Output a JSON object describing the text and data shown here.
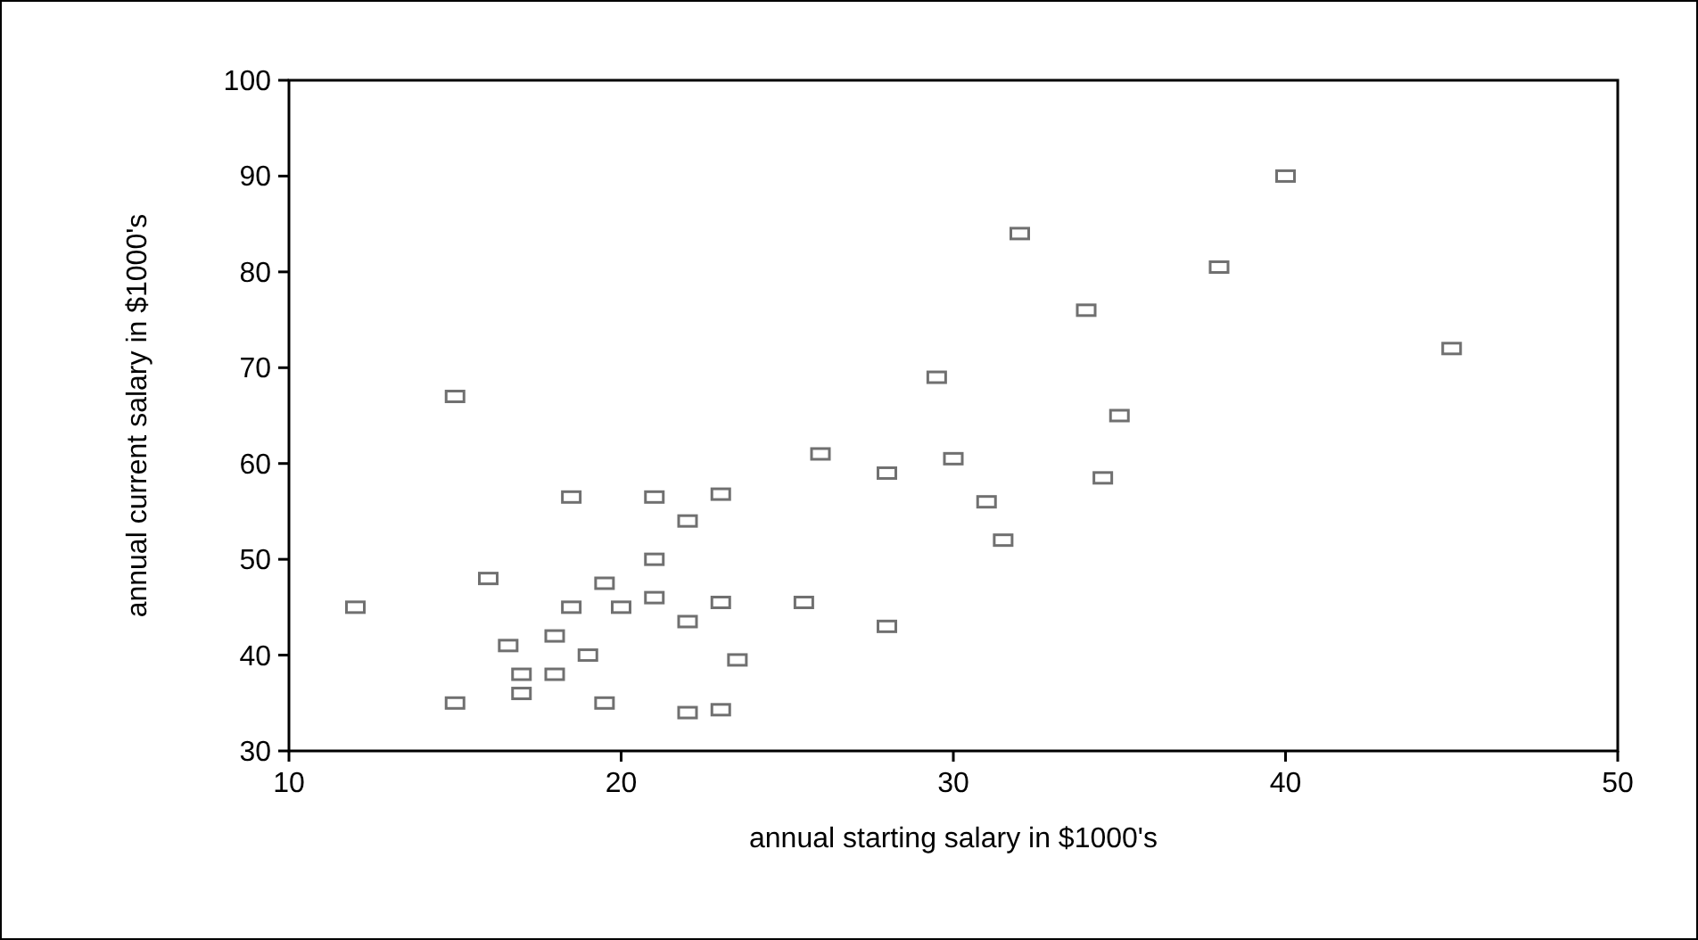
{
  "chart_data": {
    "type": "scatter",
    "xlabel": "annual starting salary in $1000's",
    "ylabel": "annual current salary in $1000's",
    "xlim": [
      10,
      50
    ],
    "xticks": [
      10,
      20,
      30,
      40,
      50
    ],
    "ylim": [
      30,
      100
    ],
    "yticks": [
      30,
      40,
      50,
      60,
      70,
      80,
      90,
      100
    ],
    "grid": false,
    "marker": "square",
    "series": [
      {
        "color": "#707070",
        "x": [
          12,
          15,
          15,
          16,
          16.6,
          17,
          17,
          18,
          18,
          18.5,
          18.5,
          19,
          19.5,
          19.5,
          20,
          21,
          21,
          21,
          22,
          22,
          22,
          23,
          23,
          23,
          23.5,
          25.5,
          26,
          28,
          28,
          29.5,
          30,
          31,
          31.5,
          32,
          34,
          34.5,
          35,
          38,
          40,
          45
        ],
        "values": [
          45,
          67,
          35,
          48,
          41,
          38,
          36,
          42,
          38,
          56.5,
          45,
          40,
          47.5,
          35,
          45,
          56.5,
          50,
          46,
          54,
          43.5,
          34,
          56.8,
          45.5,
          34.3,
          39.5,
          45.5,
          61,
          59,
          43,
          69,
          60.5,
          56,
          52,
          84,
          76,
          58.5,
          65,
          80.5,
          90,
          72
        ]
      }
    ]
  }
}
